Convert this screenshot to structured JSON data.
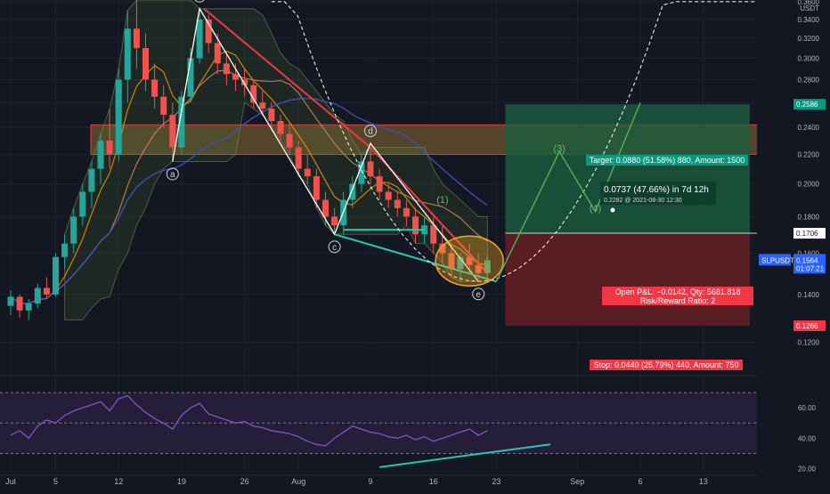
{
  "colors": {
    "background": "#131722",
    "grid": "#1e2230",
    "axis_text": "#b2b5be",
    "candle_up": "#26a69a",
    "candle_down": "#ef5350",
    "target_zone": "#1b5e3f",
    "stop_zone": "#6b1f24",
    "resistance_band": "#8a6a32",
    "trendline_red": "#f23645",
    "wave_line": "#ffffff",
    "support_teal": "#26c6b0",
    "rsi_line": "#7e57c2",
    "rsi_band": "#2a2140",
    "target_label_bg": "#089981",
    "stop_label_bg": "#f23645",
    "pnl_label_bg": "#f23645",
    "price_badge_bg": "#2962ff",
    "ellipse_fill": "#f5a623"
  },
  "chart_data": {
    "type": "candlestick",
    "symbol": "SLPUSDT",
    "currency_label": "USDT",
    "price_axis": {
      "ticks": [
        "0.3600",
        "0.3400",
        "0.3200",
        "0.3000",
        "0.2800",
        "0.2600",
        "0.2400",
        "0.2200",
        "0.2000",
        "0.1800",
        "0.1600",
        "0.1400",
        "0.1200"
      ],
      "ylim": [
        0.1084,
        0.362
      ],
      "scale": "log"
    },
    "rsi_axis": {
      "ticks": [
        "60.00",
        "40.00",
        "20.00"
      ],
      "ylim": [
        18,
        80
      ],
      "bands": [
        70,
        50,
        30
      ]
    },
    "time_axis": {
      "labels": [
        "Jul",
        "5",
        "12",
        "19",
        "26",
        "Aug",
        "9",
        "16",
        "23",
        "Sep",
        "6",
        "13"
      ],
      "label_index": [
        0,
        5,
        12,
        19,
        26,
        32,
        40,
        47,
        54,
        63,
        70,
        77
      ]
    },
    "candles": [
      [
        0,
        0.135,
        0.142,
        0.131,
        0.139
      ],
      [
        1,
        0.139,
        0.14,
        0.13,
        0.133
      ],
      [
        2,
        0.133,
        0.138,
        0.129,
        0.136
      ],
      [
        3,
        0.136,
        0.145,
        0.134,
        0.143
      ],
      [
        4,
        0.143,
        0.148,
        0.138,
        0.14
      ],
      [
        5,
        0.14,
        0.16,
        0.139,
        0.158
      ],
      [
        6,
        0.158,
        0.17,
        0.152,
        0.165
      ],
      [
        7,
        0.165,
        0.185,
        0.16,
        0.18
      ],
      [
        8,
        0.18,
        0.2,
        0.175,
        0.195
      ],
      [
        9,
        0.195,
        0.215,
        0.185,
        0.21
      ],
      [
        10,
        0.21,
        0.235,
        0.2,
        0.23
      ],
      [
        11,
        0.23,
        0.255,
        0.21,
        0.22
      ],
      [
        12,
        0.22,
        0.29,
        0.215,
        0.28
      ],
      [
        13,
        0.28,
        0.35,
        0.26,
        0.33
      ],
      [
        14,
        0.33,
        0.362,
        0.29,
        0.31
      ],
      [
        15,
        0.31,
        0.325,
        0.27,
        0.28
      ],
      [
        16,
        0.28,
        0.295,
        0.255,
        0.265
      ],
      [
        17,
        0.265,
        0.275,
        0.24,
        0.25
      ],
      [
        18,
        0.25,
        0.26,
        0.215,
        0.225
      ],
      [
        19,
        0.225,
        0.27,
        0.22,
        0.265
      ],
      [
        20,
        0.265,
        0.31,
        0.26,
        0.3
      ],
      [
        21,
        0.3,
        0.352,
        0.295,
        0.34
      ],
      [
        22,
        0.34,
        0.345,
        0.305,
        0.315
      ],
      [
        23,
        0.315,
        0.325,
        0.285,
        0.295
      ],
      [
        24,
        0.295,
        0.305,
        0.275,
        0.285
      ],
      [
        25,
        0.285,
        0.295,
        0.27,
        0.28
      ],
      [
        26,
        0.28,
        0.29,
        0.265,
        0.275
      ],
      [
        27,
        0.275,
        0.28,
        0.255,
        0.26
      ],
      [
        28,
        0.26,
        0.27,
        0.25,
        0.255
      ],
      [
        29,
        0.255,
        0.26,
        0.24,
        0.245
      ],
      [
        30,
        0.245,
        0.25,
        0.23,
        0.235
      ],
      [
        31,
        0.235,
        0.245,
        0.22,
        0.225
      ],
      [
        32,
        0.225,
        0.23,
        0.205,
        0.21
      ],
      [
        33,
        0.21,
        0.22,
        0.2,
        0.205
      ],
      [
        34,
        0.205,
        0.21,
        0.185,
        0.19
      ],
      [
        35,
        0.19,
        0.195,
        0.175,
        0.18
      ],
      [
        36,
        0.18,
        0.185,
        0.17,
        0.175
      ],
      [
        37,
        0.175,
        0.195,
        0.17,
        0.19
      ],
      [
        38,
        0.19,
        0.205,
        0.185,
        0.2
      ],
      [
        39,
        0.2,
        0.22,
        0.195,
        0.215
      ],
      [
        40,
        0.215,
        0.225,
        0.2,
        0.205
      ],
      [
        41,
        0.205,
        0.21,
        0.19,
        0.195
      ],
      [
        42,
        0.195,
        0.2,
        0.185,
        0.19
      ],
      [
        43,
        0.19,
        0.195,
        0.18,
        0.185
      ],
      [
        44,
        0.185,
        0.19,
        0.175,
        0.18
      ],
      [
        45,
        0.18,
        0.185,
        0.165,
        0.17
      ],
      [
        46,
        0.17,
        0.18,
        0.165,
        0.175
      ],
      [
        47,
        0.175,
        0.18,
        0.16,
        0.165
      ],
      [
        48,
        0.165,
        0.175,
        0.155,
        0.16
      ],
      [
        49,
        0.16,
        0.165,
        0.148,
        0.152
      ],
      [
        50,
        0.152,
        0.16,
        0.146,
        0.158
      ],
      [
        51,
        0.158,
        0.165,
        0.15,
        0.154
      ],
      [
        52,
        0.154,
        0.16,
        0.147,
        0.15
      ],
      [
        53,
        0.15,
        0.159,
        0.146,
        0.1564
      ]
    ],
    "rsi": [
      42,
      45,
      40,
      48,
      52,
      50,
      55,
      58,
      60,
      62,
      64,
      58,
      66,
      68,
      62,
      57,
      53,
      50,
      46,
      55,
      60,
      63,
      56,
      54,
      52,
      50,
      51,
      48,
      47,
      45,
      44,
      43,
      41,
      38,
      36,
      35,
      40,
      44,
      48,
      46,
      44,
      43,
      41,
      40,
      42,
      39,
      41,
      38,
      40,
      42,
      44,
      46,
      42,
      45
    ],
    "levels": {
      "last_price": "0.1564",
      "countdown": "01:07:21",
      "entry": "0.1706",
      "target": "0.2586",
      "stop": "0.1266"
    },
    "position": {
      "target_label": "Target: 0.0880 (51.58%) 880, Amount: 1500",
      "stop_label": "Stop: 0.0440 (25.79%) 440, Amount: 750",
      "pnl_label": "Open P&L: −0.0142, Qty: 5681.818",
      "rr_label": "Risk/Reward Ratio: 2"
    },
    "measure": {
      "line1": "0.0737 (47.66%) in 7d 12h",
      "line2": "0.2282 @ 2021-08-30  12:30"
    },
    "wave_labels": [
      {
        "text": "a",
        "i": 18,
        "price": 0.215
      },
      {
        "text": "b",
        "i": 21,
        "price": 0.352
      },
      {
        "text": "c",
        "i": 36,
        "price": 0.17
      },
      {
        "text": "d",
        "i": 40,
        "price": 0.228
      },
      {
        "text": "e",
        "i": 52,
        "price": 0.146
      }
    ],
    "projection_labels": [
      {
        "text": "(3)",
        "i": 61,
        "price": 0.222
      },
      {
        "text": "(4)",
        "i": 65,
        "price": 0.183
      },
      {
        "text": "(1)",
        "i": 48,
        "price": 0.188
      }
    ]
  }
}
